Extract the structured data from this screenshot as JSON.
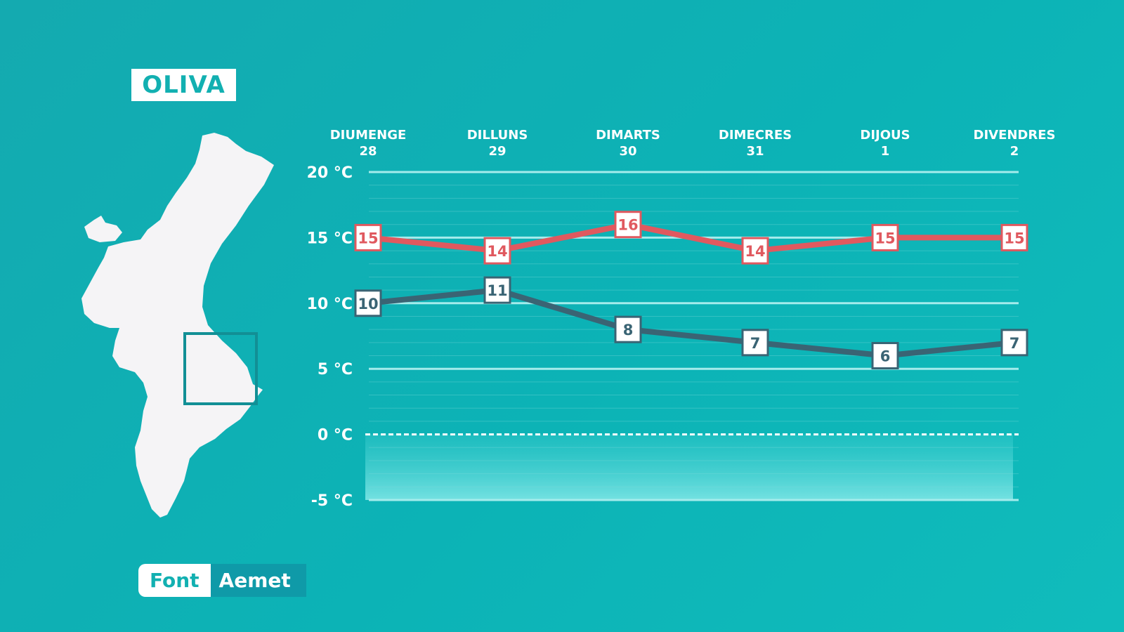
{
  "location": "OLIVA",
  "source": {
    "label": "Font",
    "value": "Aemet"
  },
  "colors": {
    "background": "#10b1b3",
    "max_line": "#e0595f",
    "min_line": "#3a6474",
    "grid": "#8ee3e3"
  },
  "chart_data": {
    "type": "line",
    "title": "",
    "xlabel": "",
    "ylabel": "",
    "categories": [
      {
        "day": "DIUMENGE",
        "date": "28"
      },
      {
        "day": "DILLUNS",
        "date": "29"
      },
      {
        "day": "DIMARTS",
        "date": "30"
      },
      {
        "day": "DIMECRES",
        "date": "31"
      },
      {
        "day": "DIJOUS",
        "date": "1"
      },
      {
        "day": "DIVENDRES",
        "date": "2"
      }
    ],
    "y_ticks": [
      {
        "value": 20,
        "label": "20 °C"
      },
      {
        "value": 15,
        "label": "15 °C"
      },
      {
        "value": 10,
        "label": "10 °C"
      },
      {
        "value": 5,
        "label": "5 °C"
      },
      {
        "value": 0,
        "label": "0 °C"
      },
      {
        "value": -5,
        "label": "-5 °C"
      }
    ],
    "ylim": [
      -5,
      20
    ],
    "series": [
      {
        "values": [
          15,
          14,
          16,
          14,
          15,
          15
        ],
        "color": "#e0595f"
      },
      {
        "values": [
          10,
          11,
          8,
          7,
          6,
          7
        ],
        "color": "#3a6474"
      }
    ],
    "grid": true,
    "legend": "none"
  }
}
